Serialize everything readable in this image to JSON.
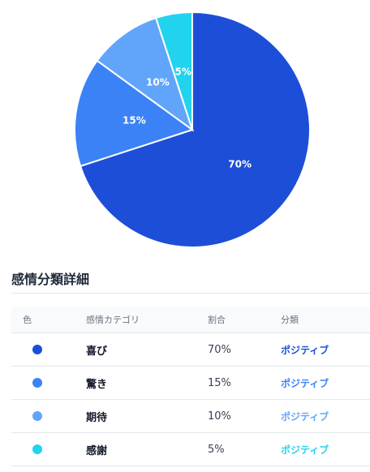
{
  "chart_data": {
    "type": "pie",
    "title": "",
    "start_angle_deg": 0,
    "direction": "clockwise",
    "slices": [
      {
        "label": "70%",
        "value": 70,
        "color": "#1d4ed8"
      },
      {
        "label": "15%",
        "value": 15,
        "color": "#3b82f6"
      },
      {
        "label": "10%",
        "value": 10,
        "color": "#60a5fa"
      },
      {
        "label": "5%",
        "value": 5,
        "color": "#22d3ee"
      }
    ]
  },
  "table": {
    "title": "感情分類詳細",
    "headers": {
      "color": "色",
      "category": "感情カテゴリ",
      "ratio": "割合",
      "class": "分類"
    },
    "rows": [
      {
        "category": "喜び",
        "ratio": "70%",
        "class": "ポジティブ",
        "color": "#1d4ed8"
      },
      {
        "category": "驚き",
        "ratio": "15%",
        "class": "ポジティブ",
        "color": "#3b82f6"
      },
      {
        "category": "期待",
        "ratio": "10%",
        "class": "ポジティブ",
        "color": "#60a5fa"
      },
      {
        "category": "感謝",
        "ratio": "5%",
        "class": "ポジティブ",
        "color": "#22d3ee"
      }
    ]
  }
}
